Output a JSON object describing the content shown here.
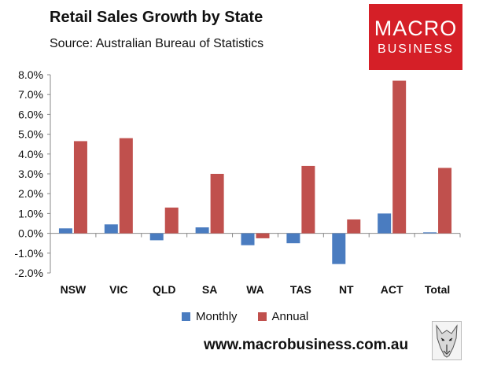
{
  "header": {
    "title": "Retail Sales Growth by State",
    "subtitle": "Source: Australian Bureau of Statistics"
  },
  "logo": {
    "line1": "MACRO",
    "line2": "BUSINESS"
  },
  "footer": {
    "url": "www.macrobusiness.com.au"
  },
  "colors": {
    "monthly": "#4a7cc0",
    "annual": "#c0504d",
    "logo_bg": "#d51f27"
  },
  "chart_data": {
    "type": "bar",
    "categories": [
      "NSW",
      "VIC",
      "QLD",
      "SA",
      "WA",
      "TAS",
      "NT",
      "ACT",
      "Total"
    ],
    "series": [
      {
        "name": "Monthly",
        "color": "#4a7cc0",
        "values": [
          0.25,
          0.45,
          -0.35,
          0.3,
          -0.6,
          -0.5,
          -1.55,
          1.0,
          0.05
        ]
      },
      {
        "name": "Annual",
        "color": "#c0504d",
        "values": [
          4.65,
          4.8,
          1.3,
          3.0,
          -0.25,
          3.4,
          0.7,
          7.7,
          3.3
        ]
      }
    ],
    "ylim": [
      -2.0,
      8.0
    ],
    "yticks": [
      -2.0,
      -1.0,
      0.0,
      1.0,
      2.0,
      3.0,
      4.0,
      5.0,
      6.0,
      7.0,
      8.0
    ],
    "ytick_labels": [
      "-2.0%",
      "-1.0%",
      "0.0%",
      "1.0%",
      "2.0%",
      "3.0%",
      "4.0%",
      "5.0%",
      "6.0%",
      "7.0%",
      "8.0%"
    ],
    "xlabel": "",
    "ylabel": "",
    "grid": false,
    "legend": "bottom"
  }
}
